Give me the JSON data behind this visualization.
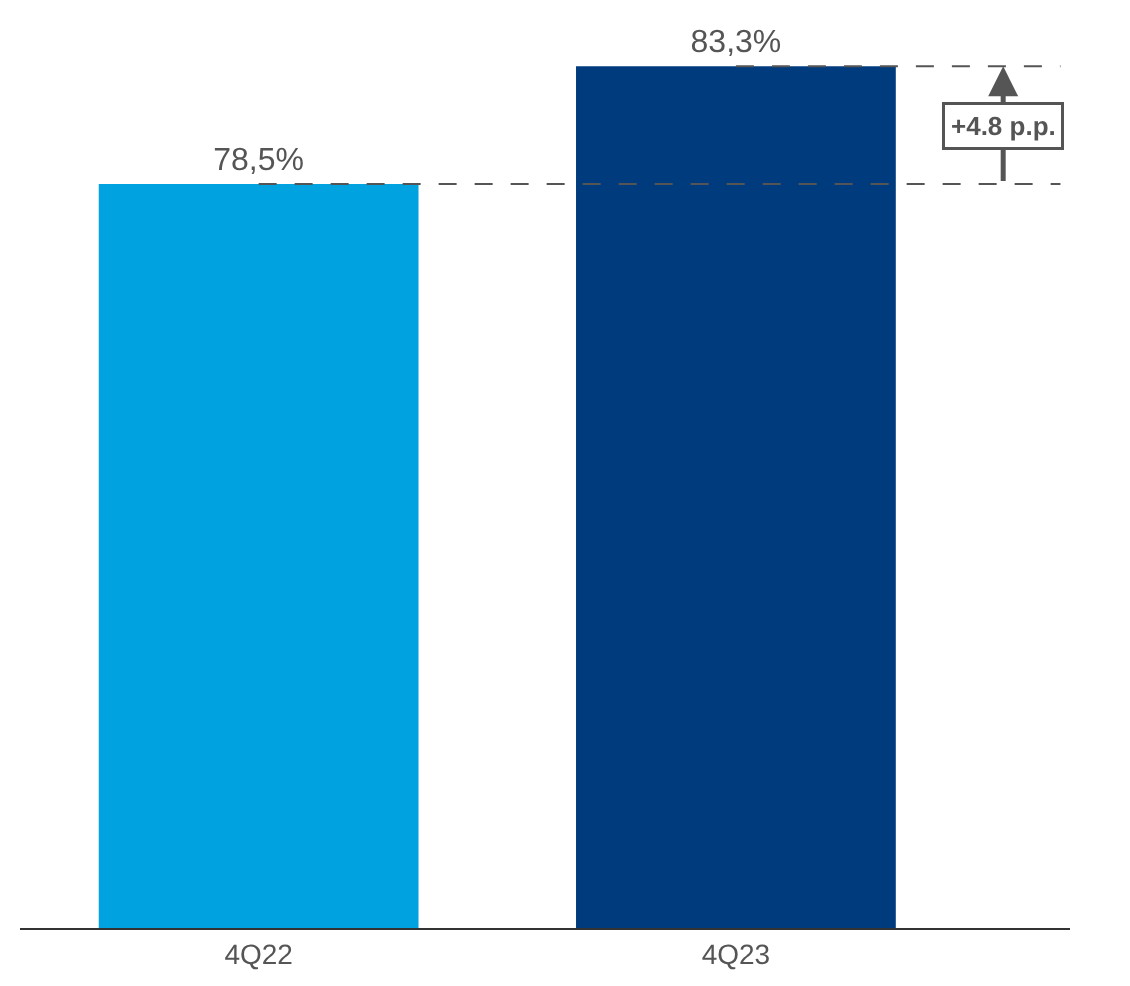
{
  "chart_data": {
    "type": "bar",
    "categories": [
      "4Q22",
      "4Q23"
    ],
    "values": [
      78.5,
      83.3
    ],
    "colors": [
      "#00a3e0",
      "#003b7e"
    ],
    "value_labels": [
      "78,5%",
      "83,3%"
    ],
    "ylim": [
      48.2,
      86
    ],
    "tick_labels": "x",
    "legend": false,
    "ref_lines": [
      {
        "axis": "y",
        "value": 78.5,
        "color": "#555555",
        "line_style": "dashed"
      },
      {
        "axis": "y",
        "value": 83.3,
        "color": "#555555",
        "line_style": "dashed"
      }
    ],
    "annotations": [
      "+4.8 p.p."
    ]
  }
}
